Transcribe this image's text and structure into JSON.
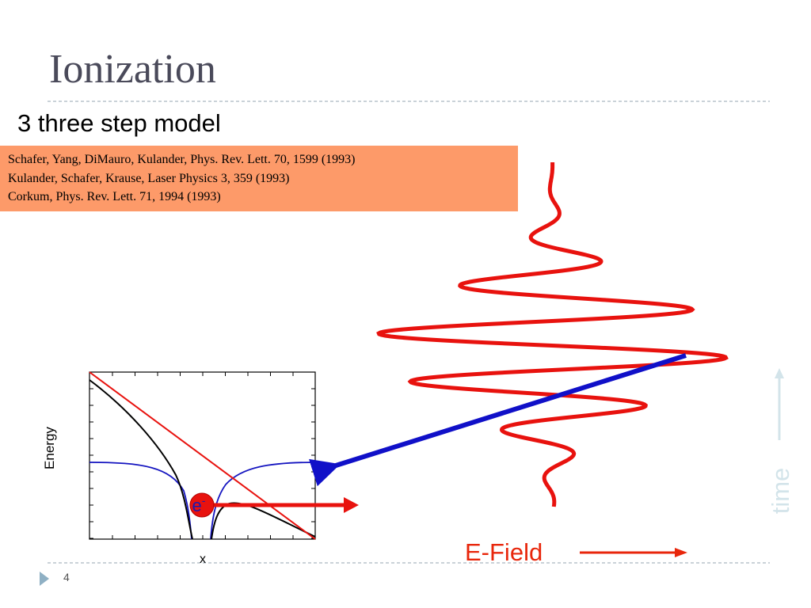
{
  "header": {
    "title": "Ionization",
    "subtitle": "3 three step model"
  },
  "references": [
    "Schafer, Yang, DiMauro, Kulander, Phys. Rev. Lett. 70, 1599 (1993)",
    "Kulander, Schafer, Krause, Laser Physics 3, 359 (1993)",
    "Corkum, Phys. Rev. Lett. 71, 1994 (1993)"
  ],
  "plot": {
    "y_label": "Energy",
    "x_label": "x",
    "particle_label": "e",
    "particle_charge": "-"
  },
  "field_label": "E-Field",
  "time_label": "time",
  "footer": {
    "page_number": "4"
  }
}
